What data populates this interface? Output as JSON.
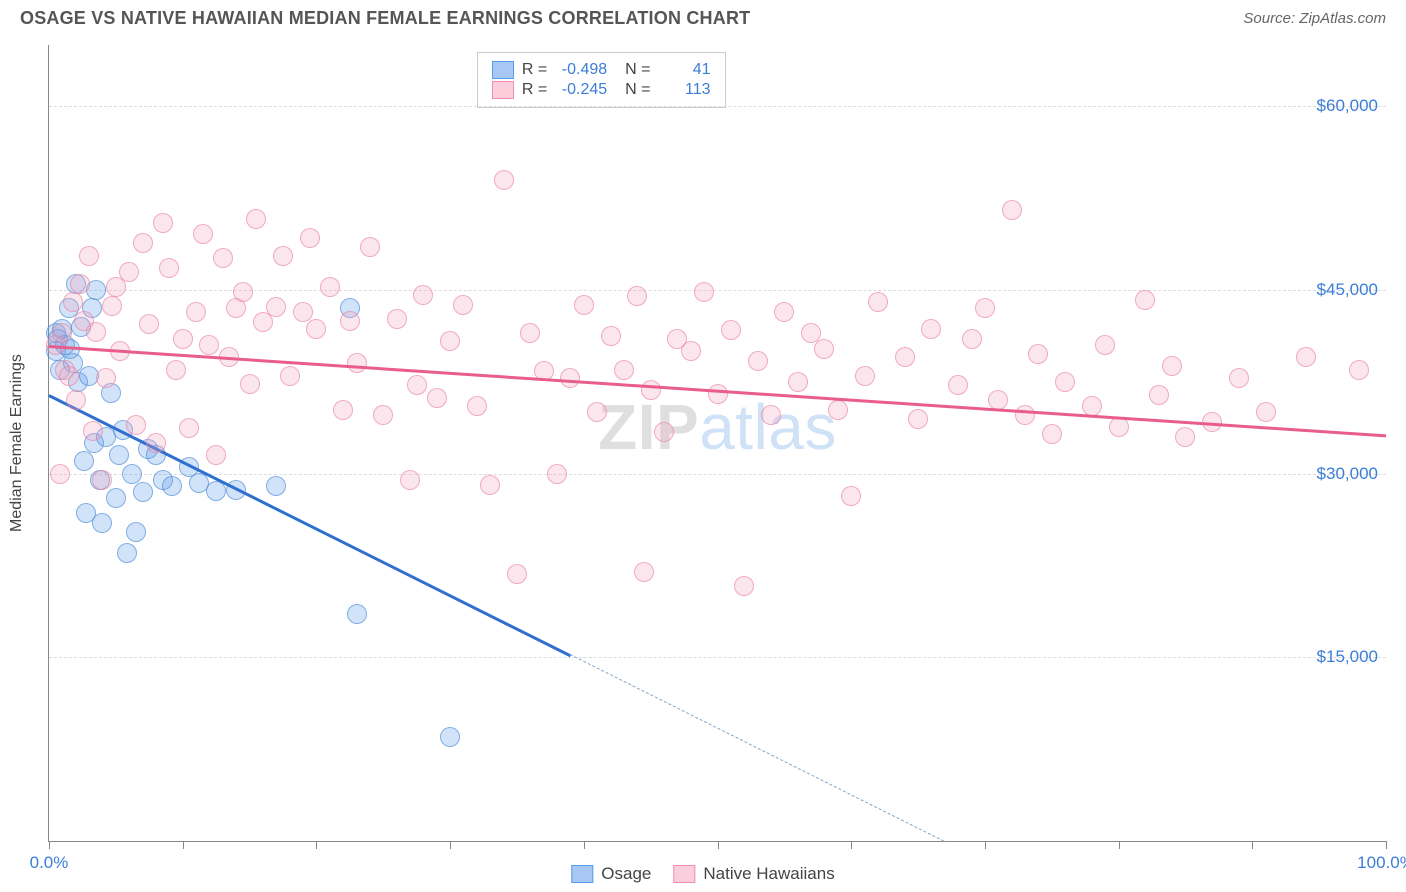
{
  "header": {
    "title": "OSAGE VS NATIVE HAWAIIAN MEDIAN FEMALE EARNINGS CORRELATION CHART",
    "source_prefix": "Source: ",
    "source_name": "ZipAtlas.com"
  },
  "chart": {
    "type": "scatter",
    "ylabel": "Median Female Earnings",
    "xlim": [
      0,
      100
    ],
    "ylim": [
      0,
      65000
    ],
    "background_color": "#ffffff",
    "grid_color": "#dddddd",
    "grid_dash": true,
    "axis_color": "#888888",
    "tick_label_color": "#3b7dd8",
    "ytick_values": [
      15000,
      30000,
      45000,
      60000
    ],
    "ytick_labels": [
      "$15,000",
      "$30,000",
      "$45,000",
      "$60,000"
    ],
    "xtick_values": [
      0,
      10,
      20,
      30,
      40,
      50,
      60,
      70,
      80,
      90,
      100
    ],
    "xtick_label_left": "0.0%",
    "xtick_label_right": "100.0%",
    "marker_radius": 10,
    "marker_fill_opacity": 0.28,
    "marker_stroke_opacity": 0.6,
    "marker_stroke_width": 1.2,
    "series": [
      {
        "name": "Osage",
        "color": "#5a9bea",
        "stroke": "#4a87d0",
        "trend": {
          "y_at_x0": 36500,
          "y_at_x100": -18000,
          "solid_until_x": 39,
          "line_color": "#2f6fd0",
          "dash_color": "#7ea6cc"
        },
        "points": [
          [
            0.5,
            41500
          ],
          [
            0.5,
            40000
          ],
          [
            0.7,
            41000
          ],
          [
            0.8,
            38500
          ],
          [
            1.0,
            41800
          ],
          [
            1.2,
            40500
          ],
          [
            1.5,
            43500
          ],
          [
            1.6,
            40200
          ],
          [
            1.8,
            39000
          ],
          [
            2.0,
            45500
          ],
          [
            2.2,
            37500
          ],
          [
            2.4,
            42000
          ],
          [
            2.6,
            31000
          ],
          [
            2.8,
            26800
          ],
          [
            3.0,
            38000
          ],
          [
            3.2,
            43500
          ],
          [
            3.4,
            32500
          ],
          [
            3.5,
            45000
          ],
          [
            3.8,
            29500
          ],
          [
            4.0,
            26000
          ],
          [
            4.3,
            33000
          ],
          [
            4.6,
            36600
          ],
          [
            5.0,
            28000
          ],
          [
            5.2,
            31500
          ],
          [
            5.5,
            33600
          ],
          [
            5.8,
            23500
          ],
          [
            6.2,
            30000
          ],
          [
            6.5,
            25200
          ],
          [
            7.0,
            28500
          ],
          [
            7.4,
            32000
          ],
          [
            8.0,
            31500
          ],
          [
            8.5,
            29500
          ],
          [
            9.2,
            29000
          ],
          [
            10.5,
            30500
          ],
          [
            11.2,
            29200
          ],
          [
            12.5,
            28600
          ],
          [
            14,
            28700
          ],
          [
            17,
            29000
          ],
          [
            22.5,
            43500
          ],
          [
            23,
            18500
          ],
          [
            30,
            8500
          ]
        ]
      },
      {
        "name": "Native Hawaiians",
        "color": "#f5a6bd",
        "stroke": "#e77fa0",
        "trend": {
          "y_at_x0": 40500,
          "y_at_x100": 33200,
          "solid_until_x": 100,
          "line_color": "#e85d8a",
          "dash_color": "#e85d8a"
        },
        "points": [
          [
            0.5,
            40500
          ],
          [
            0.8,
            30000
          ],
          [
            1,
            41500
          ],
          [
            1.2,
            38500
          ],
          [
            1.5,
            38000
          ],
          [
            1.8,
            44000
          ],
          [
            2,
            36000
          ],
          [
            2.3,
            45500
          ],
          [
            2.6,
            42500
          ],
          [
            3,
            47800
          ],
          [
            3.3,
            33500
          ],
          [
            3.5,
            41600
          ],
          [
            4,
            29500
          ],
          [
            4.3,
            37800
          ],
          [
            4.7,
            43700
          ],
          [
            5,
            45200
          ],
          [
            5.3,
            40000
          ],
          [
            6,
            46500
          ],
          [
            6.5,
            34000
          ],
          [
            7,
            48800
          ],
          [
            7.5,
            42200
          ],
          [
            8,
            32500
          ],
          [
            8.5,
            50500
          ],
          [
            9,
            46800
          ],
          [
            9.5,
            38500
          ],
          [
            10,
            41000
          ],
          [
            10.5,
            33700
          ],
          [
            11,
            43200
          ],
          [
            11.5,
            49600
          ],
          [
            12,
            40500
          ],
          [
            12.5,
            31500
          ],
          [
            13,
            47600
          ],
          [
            13.5,
            39500
          ],
          [
            14,
            43500
          ],
          [
            14.5,
            44800
          ],
          [
            15,
            37300
          ],
          [
            15.5,
            50800
          ],
          [
            16,
            42400
          ],
          [
            17,
            43600
          ],
          [
            17.5,
            47800
          ],
          [
            18,
            38000
          ],
          [
            19,
            43200
          ],
          [
            19.5,
            49200
          ],
          [
            20,
            41800
          ],
          [
            21,
            45200
          ],
          [
            22,
            35200
          ],
          [
            22.5,
            42500
          ],
          [
            23,
            39000
          ],
          [
            24,
            48500
          ],
          [
            25,
            34800
          ],
          [
            26,
            42600
          ],
          [
            27,
            29500
          ],
          [
            27.5,
            37200
          ],
          [
            28,
            44600
          ],
          [
            29,
            36200
          ],
          [
            30,
            40800
          ],
          [
            31,
            43800
          ],
          [
            32,
            35500
          ],
          [
            33,
            29100
          ],
          [
            34,
            54000
          ],
          [
            35,
            21800
          ],
          [
            36,
            41500
          ],
          [
            37,
            38400
          ],
          [
            38,
            30000
          ],
          [
            39,
            37800
          ],
          [
            40,
            43800
          ],
          [
            41,
            35000
          ],
          [
            42,
            41200
          ],
          [
            43,
            38500
          ],
          [
            44,
            44500
          ],
          [
            44.5,
            22000
          ],
          [
            45,
            36800
          ],
          [
            46,
            33400
          ],
          [
            47,
            41000
          ],
          [
            48,
            40000
          ],
          [
            49,
            44800
          ],
          [
            50,
            36500
          ],
          [
            51,
            41700
          ],
          [
            52,
            20800
          ],
          [
            53,
            39200
          ],
          [
            54,
            34800
          ],
          [
            55,
            43200
          ],
          [
            56,
            37500
          ],
          [
            57,
            41500
          ],
          [
            58,
            40200
          ],
          [
            59,
            35200
          ],
          [
            60,
            28200
          ],
          [
            61,
            38000
          ],
          [
            62,
            44000
          ],
          [
            64,
            39500
          ],
          [
            65,
            34500
          ],
          [
            66,
            41800
          ],
          [
            68,
            37200
          ],
          [
            69,
            41000
          ],
          [
            70,
            43500
          ],
          [
            71,
            36000
          ],
          [
            72,
            51500
          ],
          [
            73,
            34800
          ],
          [
            74,
            39800
          ],
          [
            75,
            33200
          ],
          [
            76,
            37500
          ],
          [
            78,
            35500
          ],
          [
            79,
            40500
          ],
          [
            80,
            33800
          ],
          [
            82,
            44200
          ],
          [
            83,
            36400
          ],
          [
            84,
            38800
          ],
          [
            85,
            33000
          ],
          [
            87,
            34200
          ],
          [
            89,
            37800
          ],
          [
            91,
            35000
          ],
          [
            94,
            39500
          ],
          [
            98,
            38500
          ]
        ]
      }
    ],
    "stat_box": {
      "rows": [
        {
          "swatch": "#a6c8f2",
          "swatch_border": "#5a9bea",
          "r_label": "R =",
          "r_value": "-0.498",
          "n_label": "N =",
          "n_value": "41"
        },
        {
          "swatch": "#fccedc",
          "swatch_border": "#f08fb0",
          "r_label": "R =",
          "r_value": "-0.245",
          "n_label": "N =",
          "n_value": "113"
        }
      ]
    },
    "legend": [
      {
        "swatch": "#a6c8f2",
        "swatch_border": "#5a9bea",
        "label": "Osage"
      },
      {
        "swatch": "#fccedc",
        "swatch_border": "#f08fb0",
        "label": "Native Hawaiians"
      }
    ],
    "watermark": {
      "part1": "ZIP",
      "part2": "atlas"
    }
  }
}
